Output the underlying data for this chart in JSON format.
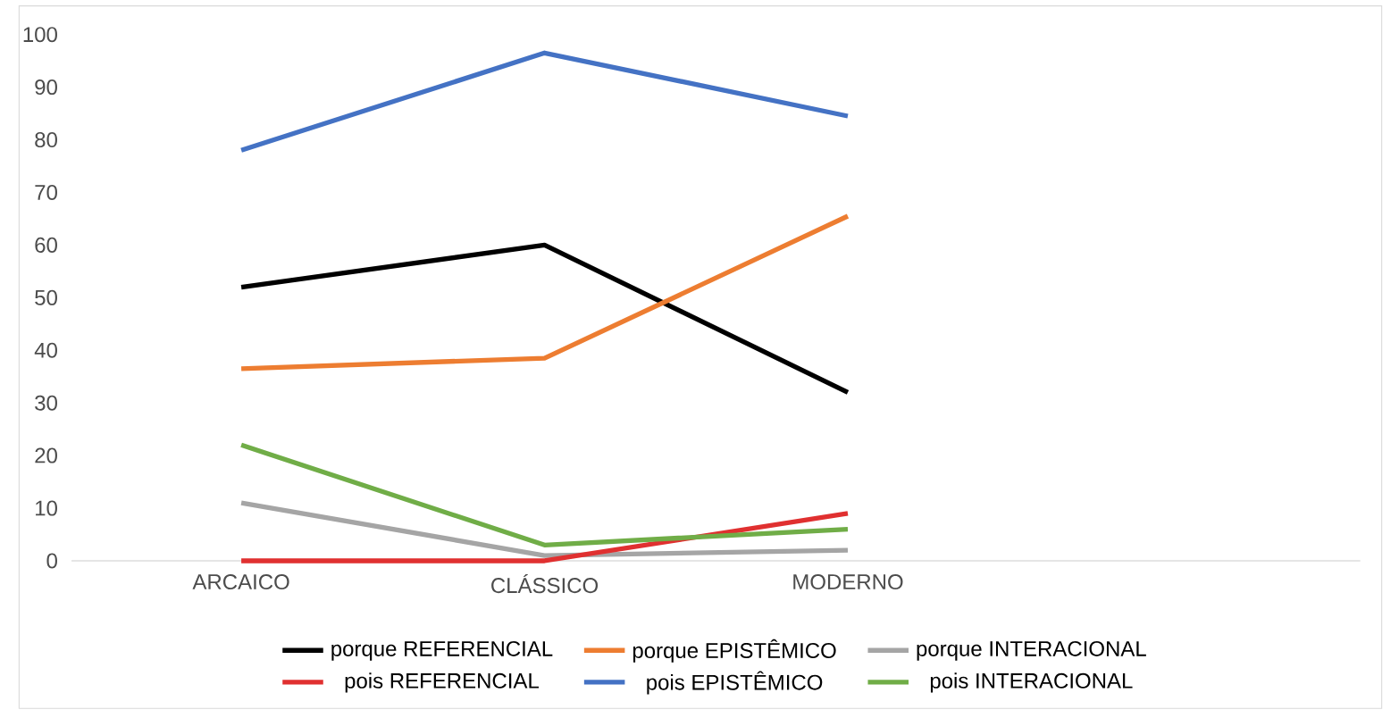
{
  "chart_data": {
    "type": "line",
    "categories": [
      "ARCAICO",
      "CLÁSSICO",
      "MODERNO"
    ],
    "ylim": [
      0,
      100
    ],
    "yticks": [
      0,
      10,
      20,
      30,
      40,
      50,
      60,
      70,
      80,
      90,
      100
    ],
    "grid": false,
    "legend": "bottom",
    "marker": "none",
    "line_style": "solid",
    "series": [
      {
        "name": "porque REFERENCIAL",
        "color": "#000000",
        "values": [
          52,
          60,
          32
        ]
      },
      {
        "name": "porque EPISTÊMICO",
        "color": "#ed7d31",
        "values": [
          36.5,
          38.5,
          65.5
        ]
      },
      {
        "name": "porque INTERACIONAL",
        "color": "#a5a5a5",
        "values": [
          11,
          1,
          2
        ]
      },
      {
        "name": "pois REFERENCIAL",
        "color": "#e03030",
        "values": [
          0,
          0,
          9
        ]
      },
      {
        "name": "pois EPISTÊMICO",
        "color": "#4472c4",
        "values": [
          78,
          96.5,
          84.5
        ]
      },
      {
        "name": "pois INTERACIONAL",
        "color": "#70ad47",
        "values": [
          22,
          3,
          6
        ]
      }
    ]
  }
}
